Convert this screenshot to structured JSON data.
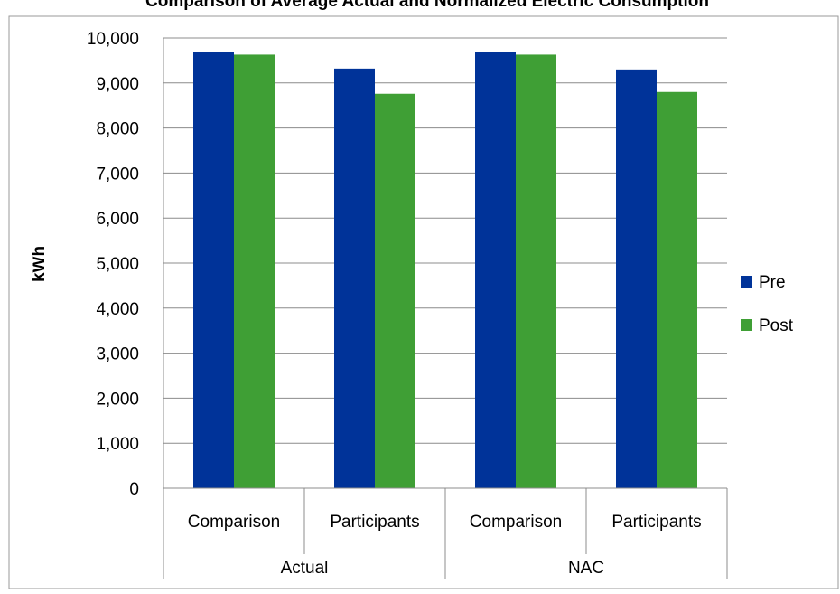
{
  "chart_data": {
    "type": "bar",
    "title": "Comparison of Average Actual and Normalized Electric Consumption",
    "ylabel": "kWh",
    "xlabel": "",
    "ylim": [
      0,
      10000
    ],
    "yticks": [
      "0",
      "1,000",
      "2,000",
      "3,000",
      "4,000",
      "5,000",
      "6,000",
      "7,000",
      "8,000",
      "9,000",
      "10,000"
    ],
    "grid": true,
    "legend_position": "right",
    "groups": [
      {
        "label": "Actual",
        "categories": [
          "Comparison",
          "Participants"
        ]
      },
      {
        "label": "NAC",
        "categories": [
          "Comparison",
          "Participants"
        ]
      }
    ],
    "categories": [
      "Comparison",
      "Participants",
      "Comparison",
      "Participants"
    ],
    "series": [
      {
        "name": "Pre",
        "color": "#003399",
        "values": [
          9680,
          9320,
          9680,
          9300
        ]
      },
      {
        "name": "Post",
        "color": "#3f9f35",
        "values": [
          9630,
          8760,
          9630,
          8800
        ]
      }
    ]
  }
}
